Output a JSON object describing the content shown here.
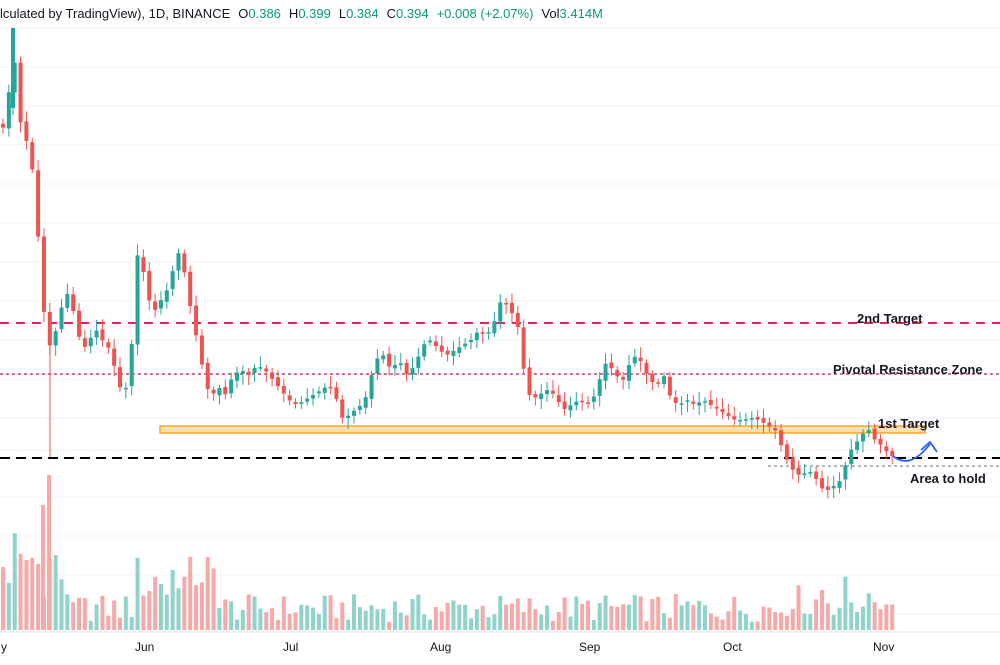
{
  "header": {
    "prefix": "lculated by TradingView), 1D, BINANCE",
    "o_label": "O",
    "o_value": "0.386",
    "h_label": "H",
    "h_value": "0.399",
    "l_label": "L",
    "l_value": "0.384",
    "c_label": "C",
    "c_value": "0.394",
    "change": "+0.008 (+2.07%)",
    "vol_label": "Vol",
    "vol_value": "3.414M"
  },
  "colors": {
    "up": "#26a69a",
    "down": "#ef5350",
    "up_vol": "#8fd3cb",
    "down_vol": "#f6a9a7",
    "target": "#e91e63",
    "pivot": "#c2185b",
    "zone_fill": "#ffe0b2",
    "zone_stroke": "#ffa726",
    "hold": "#000000",
    "arrow": "#2962ff"
  },
  "chart_data": {
    "type": "candlestick",
    "title": "",
    "x_axis_labels": [
      "y",
      "Jun",
      "Jul",
      "Aug",
      "Sep",
      "Oct",
      "Nov"
    ],
    "y_axis_labels": [],
    "annotations": [
      "2nd Target",
      "Pivotal Resistance Zone",
      "1st Target",
      "Area to hold"
    ],
    "levels": [
      {
        "name": "2nd Target",
        "style": "dashed"
      },
      {
        "name": "Pivotal Resistance Zone",
        "style": "dotted"
      },
      {
        "name": "1st Target",
        "style": "zone"
      },
      {
        "name": "Area to hold",
        "style": "dashed"
      }
    ],
    "legend": "none",
    "grid": true
  }
}
